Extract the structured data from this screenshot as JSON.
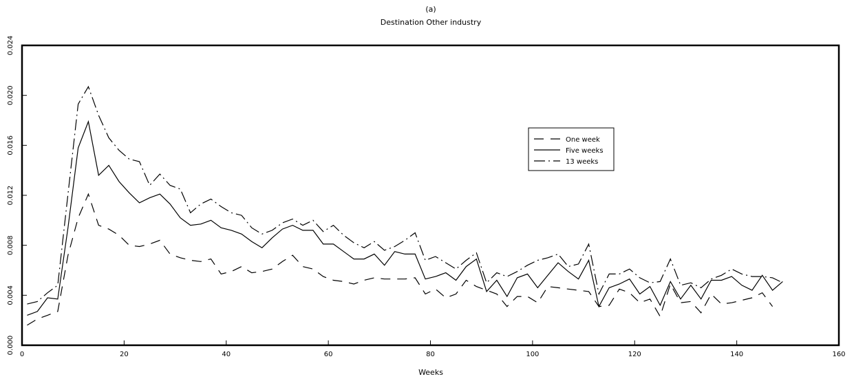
{
  "chart_data": {
    "type": "line",
    "panel_label": "(a)",
    "title": "Destination Other industry",
    "xlabel": "Weeks",
    "ylabel": "",
    "xlim": [
      0,
      160
    ],
    "ylim": [
      0,
      0.024
    ],
    "xticks": [
      0,
      20,
      40,
      60,
      80,
      100,
      120,
      140,
      160
    ],
    "yticks": [
      0.0,
      0.004,
      0.008,
      0.012,
      0.016,
      0.02,
      0.024
    ],
    "ytick_labels": [
      "0.000",
      "0.004",
      "0.008",
      "0.012",
      "0.016",
      "0.020",
      "0.024"
    ],
    "grid": false,
    "legend_position": "center-right",
    "series": [
      {
        "name": "One week",
        "dash": "long-dash",
        "x": [
          1,
          3,
          5,
          7,
          9,
          11,
          13,
          15,
          17,
          19,
          21,
          23,
          25,
          27,
          29,
          31,
          33,
          35,
          37,
          39,
          41,
          43,
          45,
          47,
          49,
          51,
          53,
          55,
          57,
          59,
          61,
          63,
          65,
          67,
          69,
          71,
          73,
          75,
          77,
          79,
          81,
          83,
          85,
          87,
          89,
          91,
          93,
          95,
          97,
          99,
          101,
          103,
          105,
          107,
          109,
          111,
          113,
          115,
          117,
          119,
          121,
          123,
          125,
          127,
          129,
          131,
          133,
          135,
          137,
          139,
          141,
          143,
          145,
          147
        ],
        "y": [
          0.0016,
          0.0021,
          0.0024,
          0.0027,
          0.0072,
          0.0102,
          0.0121,
          0.0096,
          0.0093,
          0.0088,
          0.008,
          0.0079,
          0.0081,
          0.0084,
          0.0073,
          0.007,
          0.0068,
          0.0067,
          0.0069,
          0.0057,
          0.0059,
          0.0063,
          0.0058,
          0.0059,
          0.0061,
          0.0067,
          0.0072,
          0.0063,
          0.0061,
          0.0055,
          0.0052,
          0.0051,
          0.0049,
          0.0052,
          0.0054,
          0.0053,
          0.0053,
          0.0053,
          0.0054,
          0.0041,
          0.0045,
          0.0038,
          0.0041,
          0.0052,
          0.0047,
          0.0044,
          0.0041,
          0.0031,
          0.0039,
          0.0039,
          0.0034,
          0.0047,
          0.0046,
          0.0045,
          0.0044,
          0.0043,
          0.0031,
          0.0032,
          0.0045,
          0.0042,
          0.0034,
          0.0037,
          0.0023,
          0.0049,
          0.0034,
          0.0035,
          0.0026,
          0.0041,
          0.0033,
          0.0034,
          0.0036,
          0.0038,
          0.0042,
          0.0031
        ]
      },
      {
        "name": "Five weeks",
        "dash": "solid",
        "x": [
          1,
          3,
          5,
          7,
          9,
          11,
          13,
          15,
          17,
          19,
          21,
          23,
          25,
          27,
          29,
          31,
          33,
          35,
          37,
          39,
          41,
          43,
          45,
          47,
          49,
          51,
          53,
          55,
          57,
          59,
          61,
          63,
          65,
          67,
          69,
          71,
          73,
          75,
          77,
          79,
          81,
          83,
          85,
          87,
          89,
          91,
          93,
          95,
          97,
          99,
          101,
          103,
          105,
          107,
          109,
          111,
          113,
          115,
          117,
          119,
          121,
          123,
          125,
          127,
          129,
          131,
          133,
          135,
          137,
          139,
          141,
          143,
          145,
          147,
          149
        ],
        "y": [
          0.0024,
          0.0027,
          0.0038,
          0.0037,
          0.0094,
          0.0158,
          0.0179,
          0.0136,
          0.0144,
          0.0131,
          0.0122,
          0.0114,
          0.0118,
          0.0121,
          0.0113,
          0.0102,
          0.0096,
          0.0097,
          0.01,
          0.0094,
          0.0092,
          0.0089,
          0.0083,
          0.0078,
          0.0086,
          0.0093,
          0.0096,
          0.0092,
          0.0092,
          0.0081,
          0.0081,
          0.0075,
          0.0069,
          0.0069,
          0.0073,
          0.0064,
          0.0075,
          0.0073,
          0.0073,
          0.0053,
          0.0055,
          0.0058,
          0.0052,
          0.0063,
          0.0069,
          0.0043,
          0.0052,
          0.0039,
          0.0054,
          0.0057,
          0.0046,
          0.0056,
          0.0066,
          0.0059,
          0.0053,
          0.0068,
          0.0031,
          0.0046,
          0.0049,
          0.0053,
          0.0041,
          0.0047,
          0.0032,
          0.0051,
          0.0037,
          0.0048,
          0.0037,
          0.0052,
          0.0052,
          0.0055,
          0.0048,
          0.0044,
          0.0056,
          0.0044,
          0.0051
        ]
      },
      {
        "name": "13 weeks",
        "dash": "dash-dot",
        "x": [
          1,
          3,
          5,
          7,
          9,
          11,
          13,
          15,
          17,
          19,
          21,
          23,
          25,
          27,
          29,
          31,
          33,
          35,
          37,
          39,
          41,
          43,
          45,
          47,
          49,
          51,
          53,
          55,
          57,
          59,
          61,
          63,
          65,
          67,
          69,
          71,
          73,
          75,
          77,
          79,
          81,
          83,
          85,
          87,
          89,
          91,
          93,
          95,
          97,
          99,
          101,
          103,
          105,
          107,
          109,
          111,
          113,
          115,
          117,
          119,
          121,
          123,
          125,
          127,
          129,
          131,
          133,
          135,
          137,
          139,
          141,
          143,
          145,
          147,
          149
        ],
        "y": [
          0.0033,
          0.0035,
          0.0042,
          0.0048,
          0.0121,
          0.0193,
          0.0207,
          0.0184,
          0.0166,
          0.0156,
          0.0149,
          0.0147,
          0.0128,
          0.0137,
          0.0128,
          0.0125,
          0.0106,
          0.0113,
          0.0117,
          0.0111,
          0.0106,
          0.0104,
          0.0094,
          0.0089,
          0.0092,
          0.0098,
          0.0101,
          0.0096,
          0.01,
          0.0091,
          0.0096,
          0.0088,
          0.0082,
          0.0078,
          0.0083,
          0.0076,
          0.0079,
          0.0084,
          0.009,
          0.0068,
          0.0071,
          0.0066,
          0.0061,
          0.0068,
          0.0074,
          0.005,
          0.0058,
          0.0055,
          0.0059,
          0.0064,
          0.0068,
          0.007,
          0.0073,
          0.0063,
          0.0065,
          0.0081,
          0.0041,
          0.0057,
          0.0057,
          0.0061,
          0.0054,
          0.005,
          0.0051,
          0.0069,
          0.0048,
          0.005,
          0.0046,
          0.0053,
          0.0056,
          0.0061,
          0.0057,
          0.0055,
          0.0055,
          0.0054,
          0.005
        ]
      }
    ]
  }
}
